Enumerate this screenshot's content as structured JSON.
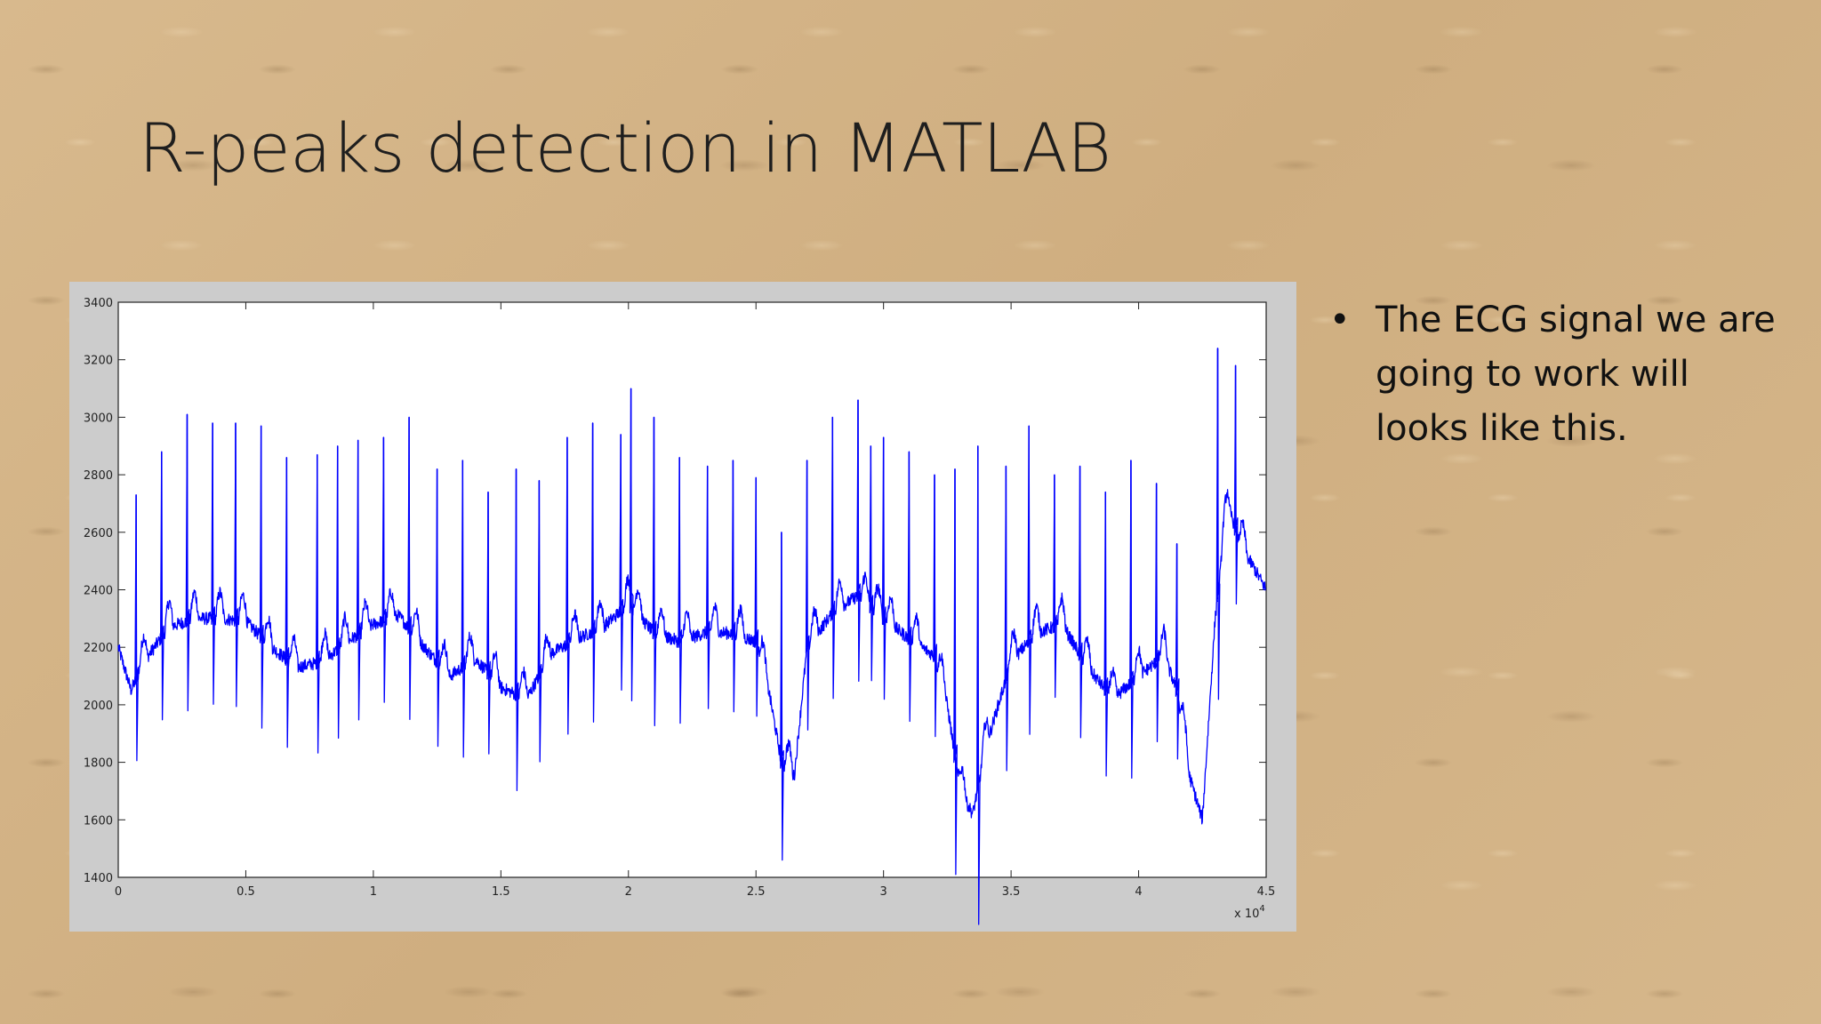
{
  "slide": {
    "title": "R-peaks detection in MATLAB",
    "bullets": [
      {
        "text": "The ECG signal we are going to work will looks like this."
      }
    ]
  },
  "chart_data": {
    "type": "line",
    "title": "",
    "xlabel": "",
    "ylabel": "",
    "x_scale_note": "x 10^4",
    "xlim": [
      0,
      4.5
    ],
    "ylim": [
      1400,
      3400
    ],
    "xticks": [
      "0",
      "0.5",
      "1",
      "1.5",
      "2",
      "2.5",
      "3",
      "3.5",
      "4",
      "4.5"
    ],
    "yticks": [
      "1400",
      "1600",
      "1800",
      "2000",
      "2200",
      "2400",
      "2600",
      "2800",
      "3000",
      "3200",
      "3400"
    ],
    "grid": false,
    "line_color": "#0000ff",
    "series": [
      {
        "baseline": {
          "x": [
            0,
            0.05,
            0.1,
            0.2,
            0.3,
            0.4,
            0.5,
            0.6,
            0.7,
            0.8,
            0.9,
            1.0,
            1.1,
            1.2,
            1.3,
            1.4,
            1.5,
            1.6,
            1.7,
            1.8,
            1.9,
            2.0,
            2.1,
            2.2,
            2.3,
            2.4,
            2.5,
            2.55,
            2.6,
            2.65,
            2.7,
            2.8,
            2.9,
            3.0,
            3.1,
            3.2,
            3.25,
            3.3,
            3.35,
            3.4,
            3.5,
            3.6,
            3.7,
            3.8,
            3.9,
            4.0,
            4.1,
            4.15,
            4.2,
            4.25,
            4.3,
            4.35,
            4.4,
            4.45,
            4.5
          ],
          "y": [
            2200,
            2050,
            2150,
            2270,
            2300,
            2300,
            2290,
            2200,
            2130,
            2150,
            2220,
            2280,
            2310,
            2200,
            2100,
            2160,
            2060,
            2020,
            2180,
            2230,
            2270,
            2350,
            2250,
            2220,
            2250,
            2250,
            2220,
            2050,
            1800,
            1750,
            2200,
            2320,
            2380,
            2300,
            2230,
            2170,
            2000,
            1700,
            1620,
            1850,
            2150,
            2250,
            2280,
            2130,
            2020,
            2100,
            2170,
            2050,
            1750,
            1600,
            2300,
            2700,
            2550,
            2480,
            2400
          ]
        },
        "r_peaks": {
          "x": [
            0.07,
            0.17,
            0.27,
            0.37,
            0.46,
            0.56,
            0.66,
            0.78,
            0.86,
            0.94,
            1.04,
            1.14,
            1.25,
            1.35,
            1.45,
            1.56,
            1.65,
            1.76,
            1.86,
            1.97,
            2.01,
            2.1,
            2.2,
            2.31,
            2.41,
            2.5,
            2.6,
            2.7,
            2.8,
            2.9,
            2.95,
            3.0,
            3.1,
            3.2,
            3.28,
            3.37,
            3.48,
            3.57,
            3.67,
            3.77,
            3.87,
            3.97,
            4.07,
            4.15,
            4.31,
            4.38
          ],
          "y": [
            2730,
            2880,
            3010,
            2980,
            2980,
            2970,
            2860,
            2870,
            2900,
            2920,
            2930,
            3000,
            2820,
            2850,
            2740,
            2820,
            2780,
            2930,
            2980,
            2940,
            3100,
            3000,
            2860,
            2830,
            2850,
            2790,
            2600,
            2850,
            3000,
            3060,
            2900,
            2930,
            2880,
            2800,
            2820,
            2900,
            2830,
            2970,
            2800,
            2830,
            2740,
            2850,
            2770,
            2560,
            3240,
            3180
          ]
        }
      }
    ]
  }
}
